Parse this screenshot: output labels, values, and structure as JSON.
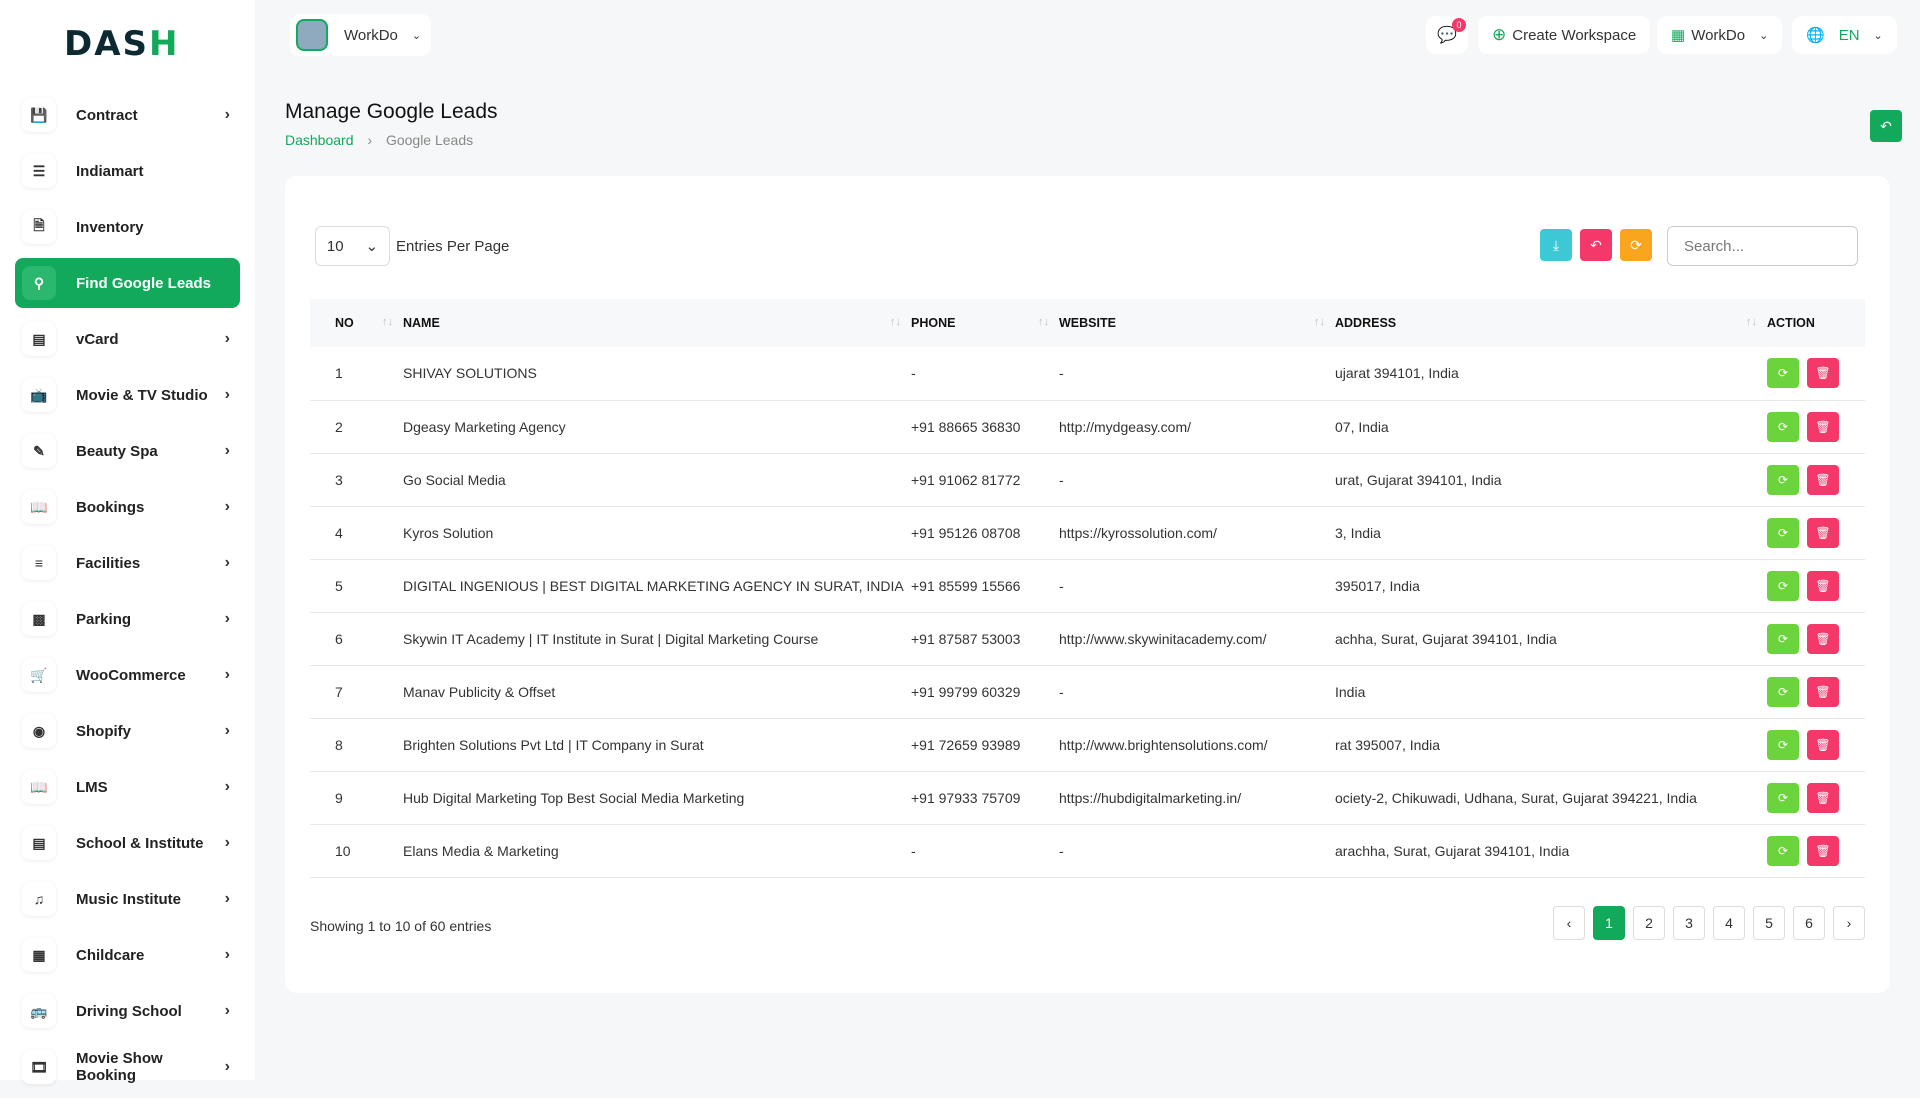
{
  "brand": {
    "logo": "DASH",
    "accent": "#12a95b"
  },
  "topbar": {
    "workspace": "WorkDo",
    "notif_count": "0",
    "create_workspace": "Create Workspace",
    "workdo": "WorkDo",
    "lang": "EN"
  },
  "sidebar": {
    "items": [
      {
        "label": "Contract",
        "icon": "contract-icon",
        "chev": true
      },
      {
        "label": "Indiamart",
        "icon": "list-icon",
        "chev": false
      },
      {
        "label": "Inventory",
        "icon": "file-icon",
        "chev": false
      },
      {
        "label": "Find Google Leads",
        "icon": "search-icon",
        "chev": false,
        "active": true
      },
      {
        "label": "vCard",
        "icon": "card-icon",
        "chev": true
      },
      {
        "label": "Movie & TV Studio",
        "icon": "tv-icon",
        "chev": true
      },
      {
        "label": "Beauty Spa",
        "icon": "brush-icon",
        "chev": true
      },
      {
        "label": "Bookings",
        "icon": "book-icon",
        "chev": true
      },
      {
        "label": "Facilities",
        "icon": "sliders-icon",
        "chev": true
      },
      {
        "label": "Parking",
        "icon": "parking-icon",
        "chev": true
      },
      {
        "label": "WooCommerce",
        "icon": "cart-icon",
        "chev": true
      },
      {
        "label": "Shopify",
        "icon": "shopify-icon",
        "chev": true
      },
      {
        "label": "LMS",
        "icon": "book-open-icon",
        "chev": true
      },
      {
        "label": "School & Institute",
        "icon": "school-icon",
        "chev": true
      },
      {
        "label": "Music Institute",
        "icon": "music-icon",
        "chev": true
      },
      {
        "label": "Childcare",
        "icon": "building-icon",
        "chev": true
      },
      {
        "label": "Driving School",
        "icon": "bus-icon",
        "chev": true
      },
      {
        "label": "Movie Show Booking",
        "icon": "film-icon",
        "chev": true
      }
    ]
  },
  "page": {
    "title": "Manage Google Leads",
    "breadcrumb": [
      "Dashboard",
      "Google Leads"
    ]
  },
  "table_controls": {
    "per_page": "10",
    "per_page_label": "Entries Per Page",
    "search_placeholder": "Search..."
  },
  "table": {
    "columns": [
      "NO",
      "NAME",
      "PHONE",
      "WEBSITE",
      "ADDRESS",
      "ACTION"
    ],
    "rows": [
      [
        "1",
        "SHIVAY SOLUTIONS",
        "-",
        "-",
        "ujarat 394101, India"
      ],
      [
        "2",
        "Dgeasy Marketing Agency",
        "+91 88665 36830",
        "http://mydgeasy.com/",
        "07, India"
      ],
      [
        "3",
        "Go Social Media",
        "+91 91062 81772",
        "-",
        "urat, Gujarat 394101, India"
      ],
      [
        "4",
        "Kyros Solution",
        "+91 95126 08708",
        "https://kyrossolution.com/",
        "3, India"
      ],
      [
        "5",
        "DIGITAL INGENIOUS | BEST DIGITAL MARKETING AGENCY IN SURAT, INDIA",
        "+91 85599 15566",
        "-",
        "395017, India"
      ],
      [
        "6",
        "Skywin IT Academy | IT Institute in Surat | Digital Marketing Course",
        "+91 87587 53003",
        "http://www.skywinitacademy.com/",
        "achha, Surat, Gujarat 394101, India"
      ],
      [
        "7",
        "Manav Publicity & Offset",
        "+91 99799 60329",
        "-",
        "India"
      ],
      [
        "8",
        "Brighten Solutions Pvt Ltd | IT Company in Surat",
        "+91 72659 93989",
        "http://www.brightensolutions.com/",
        "rat 395007, India"
      ],
      [
        "9",
        "Hub Digital Marketing Top Best Social Media Marketing",
        "+91 97933 75709",
        "https://hubdigitalmarketing.in/",
        "ociety-2, Chikuwadi, Udhana, Surat, Gujarat 394221, India"
      ],
      [
        "10",
        "Elans Media & Marketing",
        "-",
        "-",
        "arachha, Surat, Gujarat 394101, India"
      ]
    ]
  },
  "footer": {
    "showing": "Showing 1 to 10 of 60 entries",
    "pages": [
      "1",
      "2",
      "3",
      "4",
      "5",
      "6"
    ],
    "current": "1"
  },
  "colors": {
    "download": "#3ec8d6",
    "reset": "#f5386a",
    "refresh": "#fba51f",
    "edit": "#6bd33c",
    "delete": "#f5386a"
  }
}
